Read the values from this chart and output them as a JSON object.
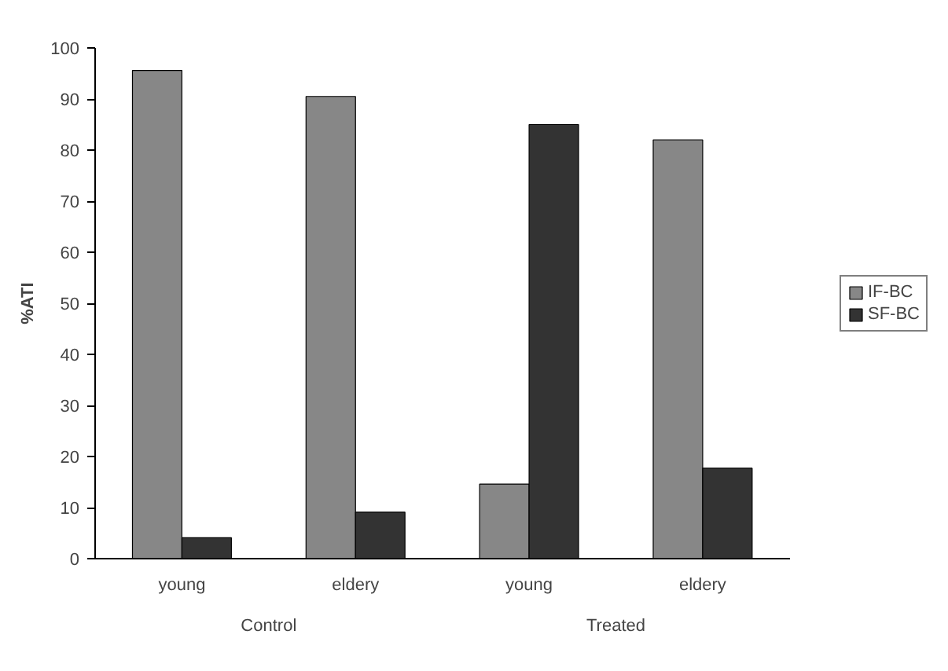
{
  "chart_data": {
    "type": "bar",
    "ylabel": "%ATI",
    "categories": [
      "young",
      "eldery",
      "young",
      "eldery"
    ],
    "series": [
      {
        "name": "IF-BC",
        "color": "#878787",
        "values": [
          95.6,
          90.5,
          14.6,
          82.0
        ]
      },
      {
        "name": "SF-BC",
        "color": "#333333",
        "values": [
          4.1,
          9.1,
          85.0,
          17.7
        ]
      }
    ],
    "ylim": [
      0,
      100
    ],
    "yticks": [
      0,
      10,
      20,
      30,
      40,
      50,
      60,
      70,
      80,
      90,
      100
    ],
    "annotations": [
      "Control",
      "Treated"
    ],
    "legend": "right",
    "grid": false
  }
}
